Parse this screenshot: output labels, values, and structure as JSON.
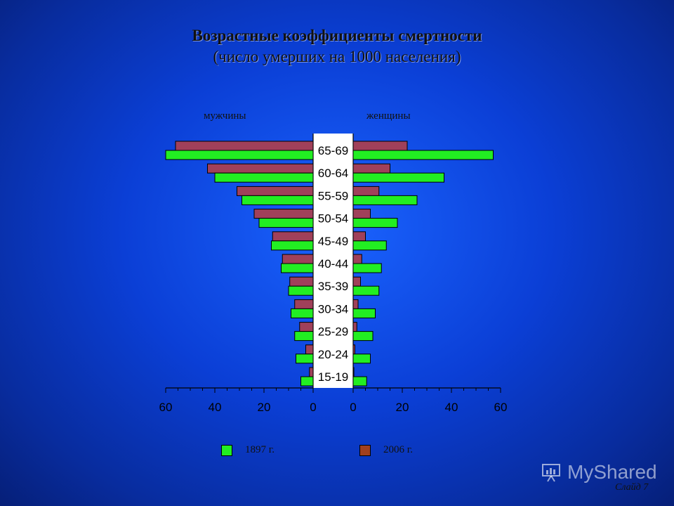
{
  "title": "Возрастные коэффициенты смертности",
  "subtitle": "(число умерших на 1000 населения)",
  "labels": {
    "male": "мужчины",
    "female": "женщины"
  },
  "legend": {
    "s1897": "1897 г.",
    "s2006": "2006 г."
  },
  "colors": {
    "s1897": "#22ee22",
    "s2006": "#a0405a",
    "s2006_legend": "#a0401e",
    "background": "#0b3fd6"
  },
  "watermark": "MyShared",
  "slide_number": "Слайд 7",
  "chart_data": {
    "type": "bar",
    "orientation": "horizontal-population-pyramid",
    "categories": [
      "65-69",
      "60-64",
      "55-59",
      "50-54",
      "45-49",
      "40-44",
      "35-39",
      "30-34",
      "25-29",
      "20-24",
      "15-19"
    ],
    "series": [
      {
        "name": "1897 г.",
        "male": [
          60,
          40,
          29,
          22,
          17,
          13,
          10,
          9,
          7.5,
          7,
          5
        ],
        "female": [
          57,
          37,
          26,
          18,
          13.5,
          11.5,
          10.5,
          9,
          8,
          7,
          5.5
        ]
      },
      {
        "name": "2006 г.",
        "male": [
          56,
          43,
          31,
          24,
          16.5,
          12.5,
          9.5,
          7.5,
          5.5,
          3,
          1.5
        ],
        "female": [
          22,
          15,
          10.5,
          7,
          5,
          3.5,
          3,
          2,
          1.5,
          0.7,
          0.3
        ]
      }
    ],
    "xlim": [
      0,
      60
    ],
    "ticks": [
      "60",
      "40",
      "20",
      "0"
    ],
    "ticks_right": [
      "0",
      "20",
      "40",
      "60"
    ]
  }
}
